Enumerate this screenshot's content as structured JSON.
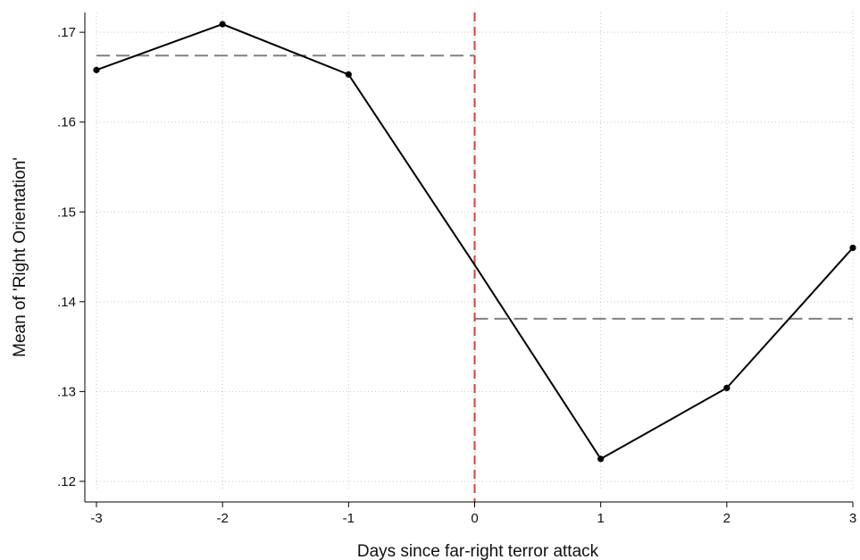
{
  "chart_data": {
    "type": "line",
    "xlabel": "Days since far-right terror attack",
    "ylabel": "Mean of 'Right Orientation'",
    "xlim": [
      -3,
      3
    ],
    "ylim": [
      0.119,
      0.1722
    ],
    "x_ticks": [
      -3,
      -2,
      -1,
      0,
      1,
      2,
      3
    ],
    "x_tick_labels": [
      "-3",
      "-2",
      "-1",
      "0",
      "1",
      "2",
      "3"
    ],
    "y_ticks": [
      0.12,
      0.13,
      0.14,
      0.15,
      0.16,
      0.17
    ],
    "y_tick_labels": [
      ".12",
      ".13",
      ".14",
      ".15",
      ".16",
      ".17"
    ],
    "grid": true,
    "series": [
      {
        "x": [
          -3,
          -2,
          -1,
          1,
          2,
          3
        ],
        "y": [
          0.1658,
          0.1709,
          0.1653,
          0.1225,
          0.1304,
          0.146
        ],
        "style": "solid",
        "color": "#000000",
        "markers": true,
        "line_x": [
          -3,
          -2,
          -1,
          0,
          1,
          2,
          3
        ],
        "line_y": [
          0.1658,
          0.1709,
          0.1653,
          0.1441,
          0.1225,
          0.1304,
          0.146
        ]
      }
    ],
    "reference_lines": [
      {
        "orientation": "horizontal",
        "y": 0.1674,
        "x_range": [
          -3,
          0
        ],
        "style": "dashed",
        "color": "#808080"
      },
      {
        "orientation": "horizontal",
        "y": 0.1381,
        "x_range": [
          0,
          3
        ],
        "style": "dashed",
        "color": "#808080"
      },
      {
        "orientation": "vertical",
        "x": 0,
        "style": "dashed",
        "color": "#e03a3a"
      }
    ]
  }
}
